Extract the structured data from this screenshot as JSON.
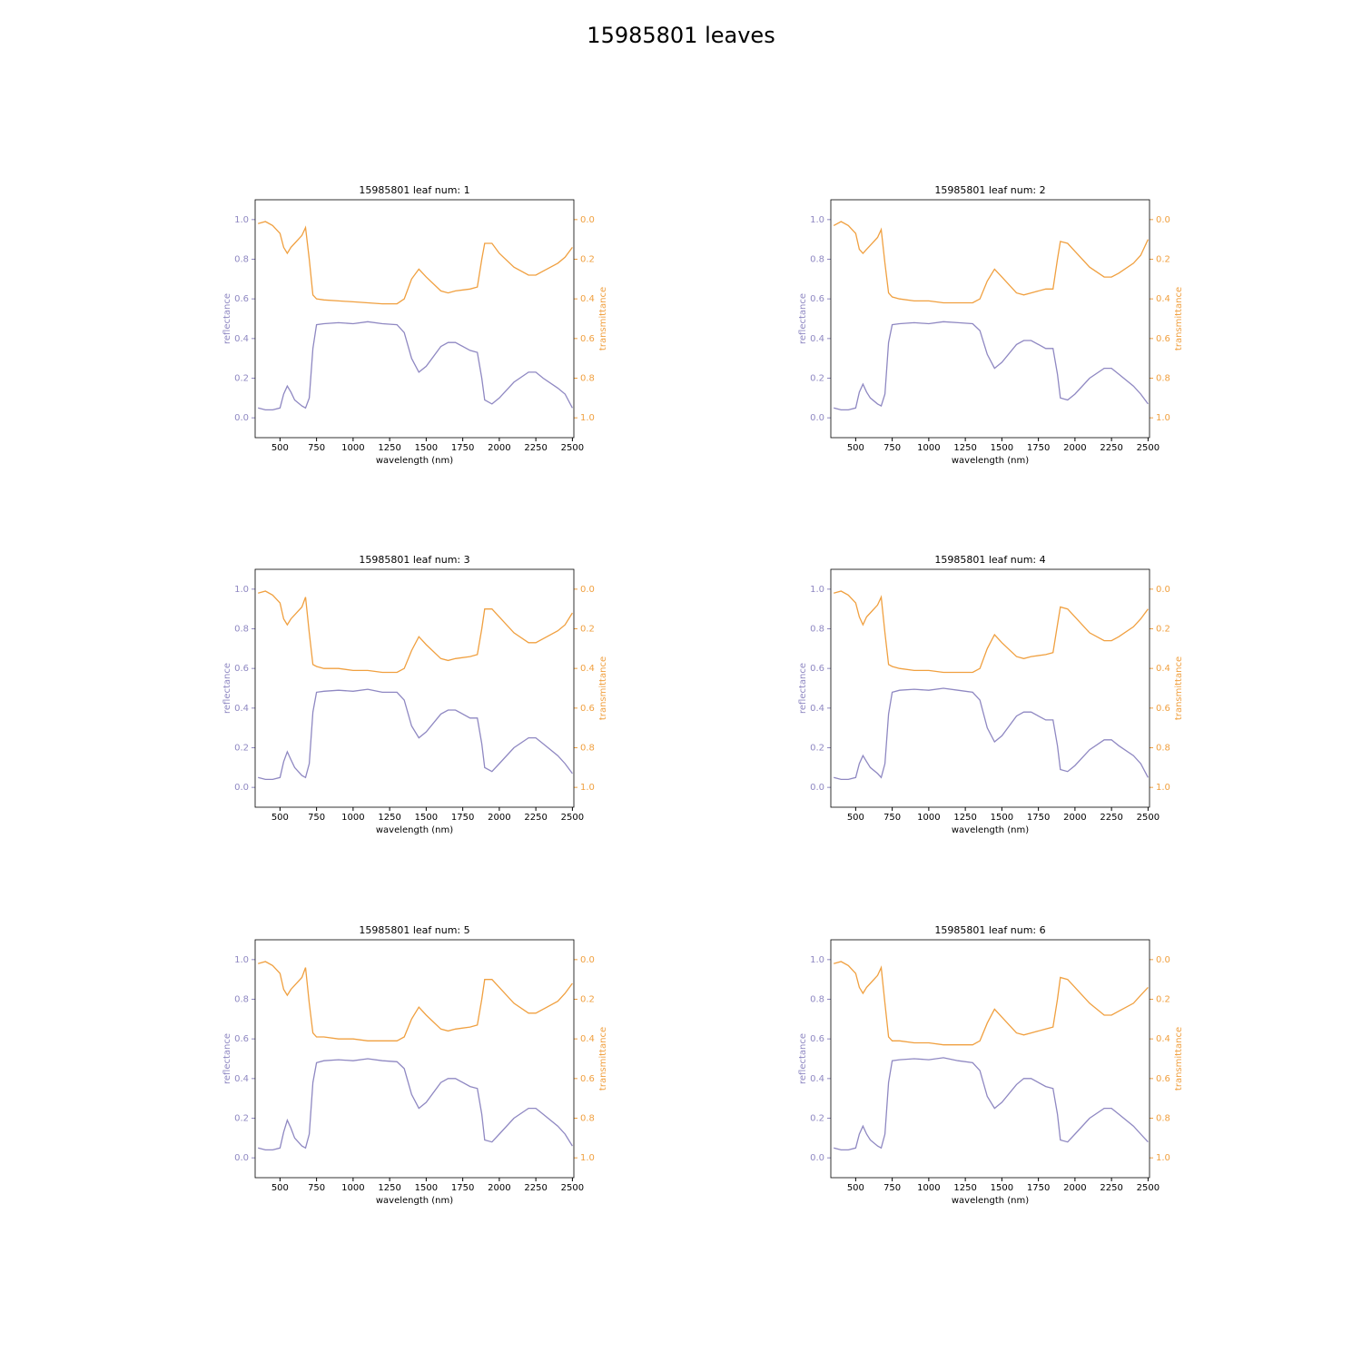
{
  "title": "15985801 leaves",
  "chart_data": [
    {
      "type": "line",
      "title": "15985801 leaf num: 1",
      "xlabel": "wavelength (nm)",
      "ylabel": "reflectance",
      "y2label": "transmittance",
      "x": [
        350,
        400,
        450,
        500,
        525,
        550,
        575,
        600,
        650,
        675,
        700,
        725,
        750,
        800,
        900,
        1000,
        1100,
        1200,
        1300,
        1350,
        1400,
        1450,
        1500,
        1600,
        1650,
        1700,
        1800,
        1850,
        1880,
        1900,
        1950,
        2000,
        2100,
        2200,
        2250,
        2300,
        2400,
        2450,
        2500
      ],
      "xlim": [
        330,
        2510
      ],
      "xticks": [
        500,
        750,
        1000,
        1250,
        1500,
        1750,
        2000,
        2250,
        2500
      ],
      "ylim": [
        -0.1,
        1.1
      ],
      "yticks": [
        {
          "value": 0,
          "label": "0.0"
        },
        0.2,
        0.4,
        0.6,
        0.8,
        {
          "value": 1,
          "label": "1.0"
        }
      ],
      "y2lim": [
        1.1,
        -0.1
      ],
      "y2ticks": [
        {
          "value": 0,
          "label": "0.0"
        },
        0.2,
        0.4,
        0.6,
        0.8,
        {
          "value": 1,
          "label": "1.0"
        }
      ],
      "series": [
        {
          "color": "#8f88c2",
          "values": [
            0.05,
            0.04,
            0.04,
            0.05,
            0.12,
            0.16,
            0.13,
            0.09,
            0.06,
            0.05,
            0.1,
            0.35,
            0.47,
            0.475,
            0.48,
            0.475,
            0.485,
            0.475,
            0.47,
            0.43,
            0.3,
            0.23,
            0.26,
            0.36,
            0.38,
            0.38,
            0.34,
            0.33,
            0.2,
            0.09,
            0.07,
            0.1,
            0.18,
            0.23,
            0.23,
            0.2,
            0.15,
            0.12,
            0.05
          ]
        },
        {
          "color": "#f0a040",
          "axis": "y2",
          "values": [
            0.02,
            0.01,
            0.03,
            0.07,
            0.14,
            0.17,
            0.14,
            0.12,
            0.08,
            0.04,
            0.2,
            0.38,
            0.4,
            0.405,
            0.41,
            0.415,
            0.42,
            0.425,
            0.425,
            0.4,
            0.3,
            0.25,
            0.29,
            0.36,
            0.37,
            0.36,
            0.35,
            0.34,
            0.2,
            0.12,
            0.12,
            0.17,
            0.24,
            0.28,
            0.28,
            0.26,
            0.22,
            0.19,
            0.14
          ]
        }
      ]
    },
    {
      "type": "line",
      "title": "15985801 leaf num: 2",
      "xlabel": "wavelength (nm)",
      "ylabel": "reflectance",
      "y2label": "transmittance",
      "x": [
        350,
        400,
        450,
        500,
        525,
        550,
        575,
        600,
        650,
        675,
        700,
        725,
        750,
        800,
        900,
        1000,
        1100,
        1200,
        1300,
        1350,
        1400,
        1450,
        1500,
        1600,
        1650,
        1700,
        1800,
        1850,
        1880,
        1900,
        1950,
        2000,
        2100,
        2200,
        2250,
        2300,
        2400,
        2450,
        2500
      ],
      "xlim": [
        330,
        2510
      ],
      "xticks": [
        500,
        750,
        1000,
        1250,
        1500,
        1750,
        2000,
        2250,
        2500
      ],
      "ylim": [
        -0.1,
        1.1
      ],
      "yticks": [
        {
          "value": 0,
          "label": "0.0"
        },
        0.2,
        0.4,
        0.6,
        0.8,
        {
          "value": 1,
          "label": "1.0"
        }
      ],
      "y2lim": [
        1.1,
        -0.1
      ],
      "y2ticks": [
        {
          "value": 0,
          "label": "0.0"
        },
        0.2,
        0.4,
        0.6,
        0.8,
        {
          "value": 1,
          "label": "1.0"
        }
      ],
      "series": [
        {
          "color": "#8f88c2",
          "values": [
            0.05,
            0.04,
            0.04,
            0.05,
            0.13,
            0.17,
            0.13,
            0.1,
            0.07,
            0.06,
            0.12,
            0.38,
            0.47,
            0.475,
            0.48,
            0.475,
            0.485,
            0.48,
            0.475,
            0.44,
            0.32,
            0.25,
            0.28,
            0.37,
            0.39,
            0.39,
            0.35,
            0.35,
            0.22,
            0.1,
            0.09,
            0.12,
            0.2,
            0.25,
            0.25,
            0.22,
            0.16,
            0.12,
            0.07
          ]
        },
        {
          "color": "#f0a040",
          "axis": "y2",
          "values": [
            0.03,
            0.01,
            0.03,
            0.07,
            0.15,
            0.17,
            0.15,
            0.13,
            0.09,
            0.05,
            0.22,
            0.37,
            0.39,
            0.4,
            0.41,
            0.41,
            0.42,
            0.42,
            0.42,
            0.4,
            0.31,
            0.25,
            0.29,
            0.37,
            0.38,
            0.37,
            0.35,
            0.35,
            0.2,
            0.11,
            0.12,
            0.16,
            0.24,
            0.29,
            0.29,
            0.27,
            0.22,
            0.18,
            0.1
          ]
        }
      ]
    },
    {
      "type": "line",
      "title": "15985801 leaf num: 3",
      "xlabel": "wavelength (nm)",
      "ylabel": "reflectance",
      "y2label": "transmittance",
      "x": [
        350,
        400,
        450,
        500,
        525,
        550,
        575,
        600,
        650,
        675,
        700,
        725,
        750,
        800,
        900,
        1000,
        1100,
        1200,
        1300,
        1350,
        1400,
        1450,
        1500,
        1600,
        1650,
        1700,
        1800,
        1850,
        1880,
        1900,
        1950,
        2000,
        2100,
        2200,
        2250,
        2300,
        2400,
        2450,
        2500
      ],
      "xlim": [
        330,
        2510
      ],
      "xticks": [
        500,
        750,
        1000,
        1250,
        1500,
        1750,
        2000,
        2250,
        2500
      ],
      "ylim": [
        -0.1,
        1.1
      ],
      "yticks": [
        {
          "value": 0,
          "label": "0.0"
        },
        0.2,
        0.4,
        0.6,
        0.8,
        {
          "value": 1,
          "label": "1.0"
        }
      ],
      "y2lim": [
        1.1,
        -0.1
      ],
      "y2ticks": [
        {
          "value": 0,
          "label": "0.0"
        },
        0.2,
        0.4,
        0.6,
        0.8,
        {
          "value": 1,
          "label": "1.0"
        }
      ],
      "series": [
        {
          "color": "#8f88c2",
          "values": [
            0.05,
            0.04,
            0.04,
            0.05,
            0.13,
            0.18,
            0.14,
            0.1,
            0.06,
            0.05,
            0.12,
            0.38,
            0.48,
            0.485,
            0.49,
            0.485,
            0.495,
            0.48,
            0.48,
            0.44,
            0.31,
            0.25,
            0.28,
            0.37,
            0.39,
            0.39,
            0.35,
            0.35,
            0.22,
            0.1,
            0.08,
            0.12,
            0.2,
            0.25,
            0.25,
            0.22,
            0.16,
            0.12,
            0.07
          ]
        },
        {
          "color": "#f0a040",
          "axis": "y2",
          "values": [
            0.02,
            0.01,
            0.03,
            0.07,
            0.15,
            0.18,
            0.15,
            0.13,
            0.09,
            0.04,
            0.22,
            0.38,
            0.39,
            0.4,
            0.4,
            0.41,
            0.41,
            0.42,
            0.42,
            0.4,
            0.31,
            0.24,
            0.28,
            0.35,
            0.36,
            0.35,
            0.34,
            0.33,
            0.2,
            0.1,
            0.1,
            0.14,
            0.22,
            0.27,
            0.27,
            0.25,
            0.21,
            0.18,
            0.12
          ]
        }
      ]
    },
    {
      "type": "line",
      "title": "15985801 leaf num: 4",
      "xlabel": "wavelength (nm)",
      "ylabel": "reflectance",
      "y2label": "transmittance",
      "x": [
        350,
        400,
        450,
        500,
        525,
        550,
        575,
        600,
        650,
        675,
        700,
        725,
        750,
        800,
        900,
        1000,
        1100,
        1200,
        1300,
        1350,
        1400,
        1450,
        1500,
        1600,
        1650,
        1700,
        1800,
        1850,
        1880,
        1900,
        1950,
        2000,
        2100,
        2200,
        2250,
        2300,
        2400,
        2450,
        2500
      ],
      "xlim": [
        330,
        2510
      ],
      "xticks": [
        500,
        750,
        1000,
        1250,
        1500,
        1750,
        2000,
        2250,
        2500
      ],
      "ylim": [
        -0.1,
        1.1
      ],
      "yticks": [
        {
          "value": 0,
          "label": "0.0"
        },
        0.2,
        0.4,
        0.6,
        0.8,
        {
          "value": 1,
          "label": "1.0"
        }
      ],
      "y2lim": [
        1.1,
        -0.1
      ],
      "y2ticks": [
        {
          "value": 0,
          "label": "0.0"
        },
        0.2,
        0.4,
        0.6,
        0.8,
        {
          "value": 1,
          "label": "1.0"
        }
      ],
      "series": [
        {
          "color": "#8f88c2",
          "values": [
            0.05,
            0.04,
            0.04,
            0.05,
            0.12,
            0.16,
            0.13,
            0.1,
            0.07,
            0.05,
            0.12,
            0.37,
            0.48,
            0.49,
            0.495,
            0.49,
            0.5,
            0.49,
            0.48,
            0.44,
            0.3,
            0.23,
            0.26,
            0.36,
            0.38,
            0.38,
            0.34,
            0.34,
            0.21,
            0.09,
            0.08,
            0.11,
            0.19,
            0.24,
            0.24,
            0.21,
            0.16,
            0.12,
            0.05
          ]
        },
        {
          "color": "#f0a040",
          "axis": "y2",
          "values": [
            0.02,
            0.01,
            0.03,
            0.07,
            0.14,
            0.18,
            0.14,
            0.12,
            0.08,
            0.04,
            0.22,
            0.38,
            0.39,
            0.4,
            0.41,
            0.41,
            0.42,
            0.42,
            0.42,
            0.4,
            0.3,
            0.23,
            0.27,
            0.34,
            0.35,
            0.34,
            0.33,
            0.32,
            0.18,
            0.09,
            0.1,
            0.14,
            0.22,
            0.26,
            0.26,
            0.24,
            0.19,
            0.15,
            0.1
          ]
        }
      ]
    },
    {
      "type": "line",
      "title": "15985801 leaf num: 5",
      "xlabel": "wavelength (nm)",
      "ylabel": "reflectance",
      "y2label": "transmittance",
      "x": [
        350,
        400,
        450,
        500,
        525,
        550,
        575,
        600,
        650,
        675,
        700,
        725,
        750,
        800,
        900,
        1000,
        1100,
        1200,
        1300,
        1350,
        1400,
        1450,
        1500,
        1600,
        1650,
        1700,
        1800,
        1850,
        1880,
        1900,
        1950,
        2000,
        2100,
        2200,
        2250,
        2300,
        2400,
        2450,
        2500
      ],
      "xlim": [
        330,
        2510
      ],
      "xticks": [
        500,
        750,
        1000,
        1250,
        1500,
        1750,
        2000,
        2250,
        2500
      ],
      "ylim": [
        -0.1,
        1.1
      ],
      "yticks": [
        {
          "value": 0,
          "label": "0.0"
        },
        0.2,
        0.4,
        0.6,
        0.8,
        {
          "value": 1,
          "label": "1.0"
        }
      ],
      "y2lim": [
        1.1,
        -0.1
      ],
      "y2ticks": [
        {
          "value": 0,
          "label": "0.0"
        },
        0.2,
        0.4,
        0.6,
        0.8,
        {
          "value": 1,
          "label": "1.0"
        }
      ],
      "series": [
        {
          "color": "#8f88c2",
          "values": [
            0.05,
            0.04,
            0.04,
            0.05,
            0.13,
            0.19,
            0.15,
            0.1,
            0.06,
            0.05,
            0.12,
            0.38,
            0.48,
            0.49,
            0.495,
            0.49,
            0.5,
            0.49,
            0.485,
            0.45,
            0.32,
            0.25,
            0.28,
            0.38,
            0.4,
            0.4,
            0.36,
            0.35,
            0.22,
            0.09,
            0.08,
            0.12,
            0.2,
            0.25,
            0.25,
            0.22,
            0.16,
            0.12,
            0.06
          ]
        },
        {
          "color": "#f0a040",
          "axis": "y2",
          "values": [
            0.02,
            0.01,
            0.03,
            0.07,
            0.15,
            0.18,
            0.15,
            0.13,
            0.09,
            0.04,
            0.22,
            0.37,
            0.39,
            0.39,
            0.4,
            0.4,
            0.41,
            0.41,
            0.41,
            0.39,
            0.3,
            0.24,
            0.28,
            0.35,
            0.36,
            0.35,
            0.34,
            0.33,
            0.2,
            0.1,
            0.1,
            0.14,
            0.22,
            0.27,
            0.27,
            0.25,
            0.21,
            0.17,
            0.12
          ]
        }
      ]
    },
    {
      "type": "line",
      "title": "15985801 leaf num: 6",
      "xlabel": "wavelength (nm)",
      "ylabel": "reflectance",
      "y2label": "transmittance",
      "x": [
        350,
        400,
        450,
        500,
        525,
        550,
        575,
        600,
        650,
        675,
        700,
        725,
        750,
        800,
        900,
        1000,
        1100,
        1200,
        1300,
        1350,
        1400,
        1450,
        1500,
        1600,
        1650,
        1700,
        1800,
        1850,
        1880,
        1900,
        1950,
        2000,
        2100,
        2200,
        2250,
        2300,
        2400,
        2450,
        2500
      ],
      "xlim": [
        330,
        2510
      ],
      "xticks": [
        500,
        750,
        1000,
        1250,
        1500,
        1750,
        2000,
        2250,
        2500
      ],
      "ylim": [
        -0.1,
        1.1
      ],
      "yticks": [
        {
          "value": 0,
          "label": "0.0"
        },
        0.2,
        0.4,
        0.6,
        0.8,
        {
          "value": 1,
          "label": "1.0"
        }
      ],
      "y2lim": [
        1.1,
        -0.1
      ],
      "y2ticks": [
        {
          "value": 0,
          "label": "0.0"
        },
        0.2,
        0.4,
        0.6,
        0.8,
        {
          "value": 1,
          "label": "1.0"
        }
      ],
      "series": [
        {
          "color": "#8f88c2",
          "values": [
            0.05,
            0.04,
            0.04,
            0.05,
            0.12,
            0.16,
            0.12,
            0.09,
            0.06,
            0.05,
            0.12,
            0.38,
            0.49,
            0.495,
            0.5,
            0.495,
            0.505,
            0.49,
            0.48,
            0.44,
            0.31,
            0.25,
            0.28,
            0.37,
            0.4,
            0.4,
            0.36,
            0.35,
            0.22,
            0.09,
            0.08,
            0.12,
            0.2,
            0.25,
            0.25,
            0.22,
            0.16,
            0.12,
            0.08
          ]
        },
        {
          "color": "#f0a040",
          "axis": "y2",
          "values": [
            0.02,
            0.01,
            0.03,
            0.07,
            0.14,
            0.17,
            0.14,
            0.12,
            0.08,
            0.04,
            0.22,
            0.39,
            0.41,
            0.41,
            0.42,
            0.42,
            0.43,
            0.43,
            0.43,
            0.41,
            0.32,
            0.25,
            0.29,
            0.37,
            0.38,
            0.37,
            0.35,
            0.34,
            0.2,
            0.09,
            0.1,
            0.14,
            0.22,
            0.28,
            0.28,
            0.26,
            0.22,
            0.18,
            0.14
          ]
        }
      ]
    }
  ]
}
